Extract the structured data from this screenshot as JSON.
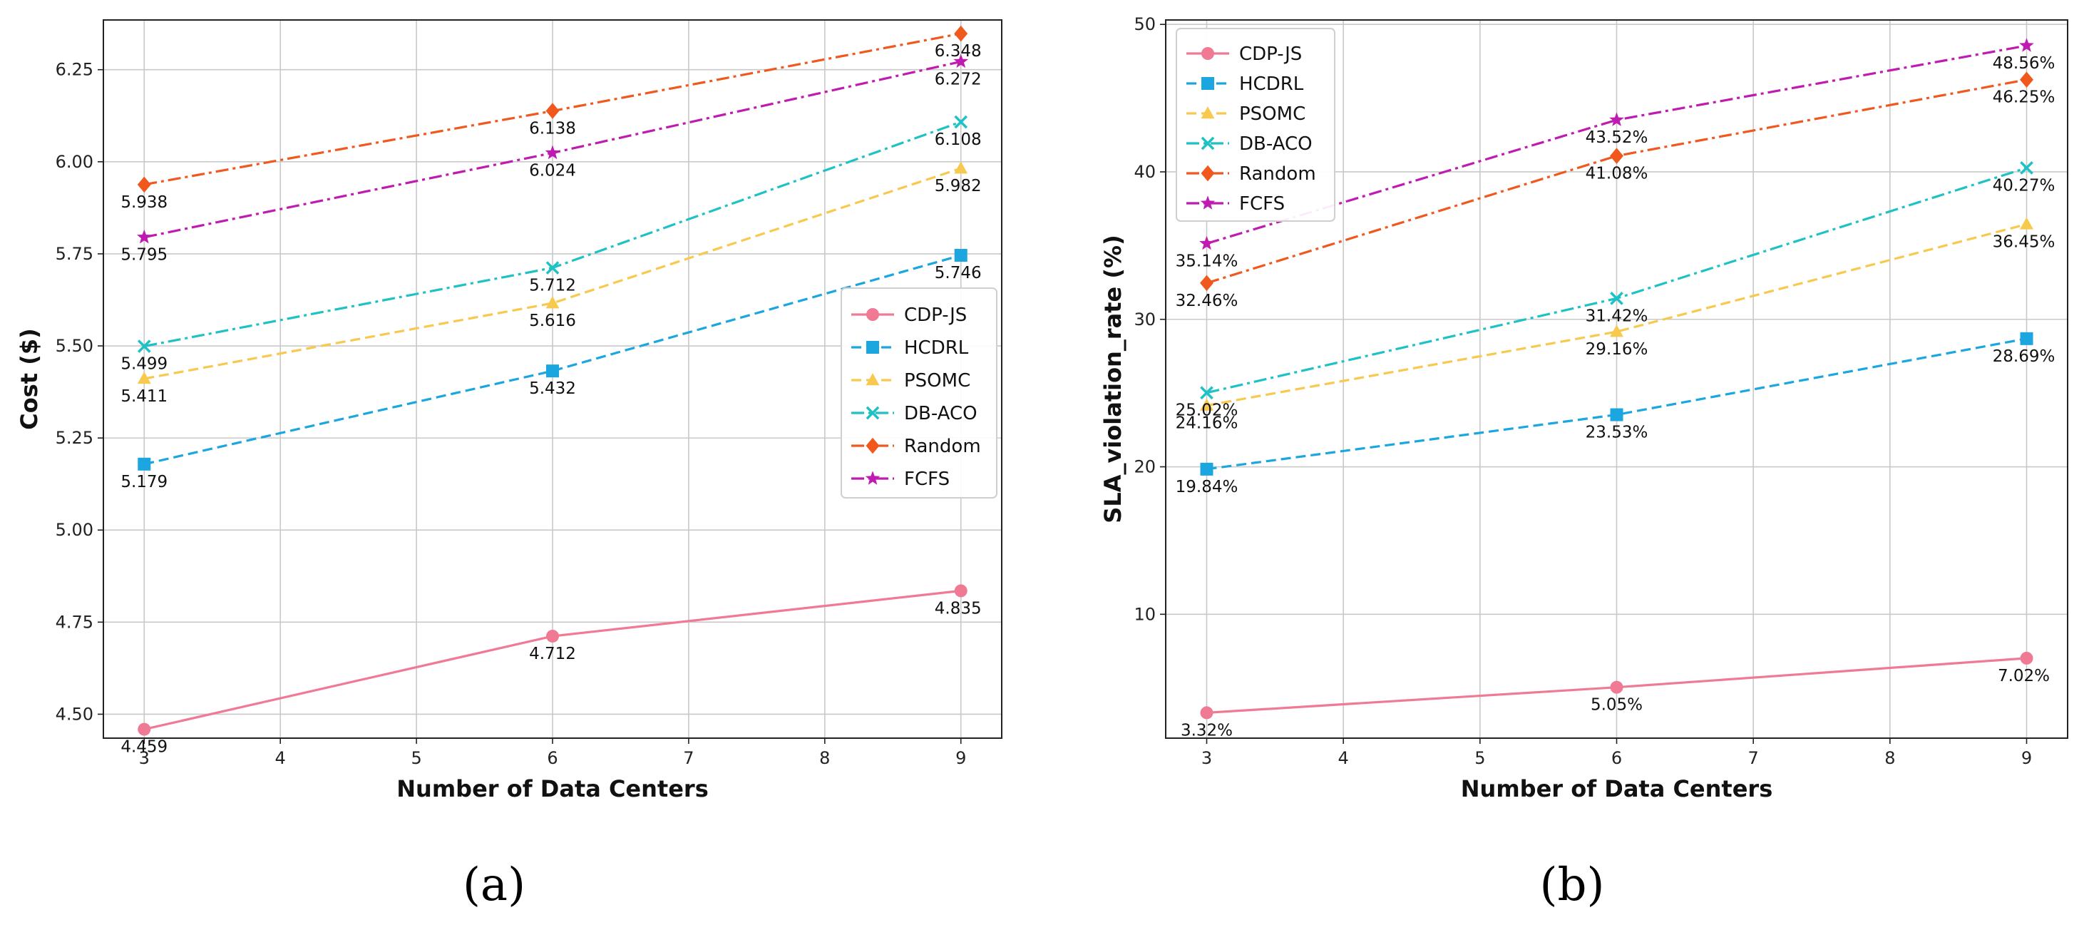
{
  "chart_data": [
    {
      "type": "line",
      "caption": "(a)",
      "xlabel": "Number of Data Centers",
      "ylabel": "Cost ($)",
      "xlim": [
        2.7,
        9.3
      ],
      "ylim": [
        4.435,
        6.385
      ],
      "xticks": [
        3,
        4,
        5,
        6,
        7,
        8,
        9
      ],
      "yticks": [
        4.5,
        4.75,
        5.0,
        5.25,
        5.5,
        5.75,
        6.0,
        6.25
      ],
      "ytick_labels": [
        "4.50",
        "4.75",
        "5.00",
        "5.25",
        "5.50",
        "5.75",
        "6.00",
        "6.25"
      ],
      "grid": true,
      "legend_position": "center-right",
      "x": [
        3,
        6,
        9
      ],
      "series": [
        {
          "name": "CDP-JS",
          "values": [
            4.459,
            4.712,
            4.835
          ],
          "labels": [
            "4.459",
            "4.712",
            "4.835"
          ],
          "color": "#f07a94",
          "marker": "circle",
          "dash": "solid"
        },
        {
          "name": "HCDRL",
          "values": [
            5.179,
            5.432,
            5.746
          ],
          "labels": [
            "5.179",
            "5.432",
            "5.746"
          ],
          "color": "#1ba6e0",
          "marker": "square",
          "dash": "dashed"
        },
        {
          "name": "PSOMC",
          "values": [
            5.411,
            5.616,
            5.982
          ],
          "labels": [
            "5.411",
            "5.616",
            "5.982"
          ],
          "color": "#f7c94f",
          "marker": "triangle",
          "dash": "dashed"
        },
        {
          "name": "DB-ACO",
          "values": [
            5.499,
            5.712,
            6.108
          ],
          "labels": [
            "5.499",
            "5.712",
            "6.108"
          ],
          "color": "#1ec2c4",
          "marker": "x",
          "dash": "dashdot"
        },
        {
          "name": "Random",
          "values": [
            5.938,
            6.138,
            6.348
          ],
          "labels": [
            "5.938",
            "6.138",
            "6.348"
          ],
          "color": "#f0581e",
          "marker": "diamond",
          "dash": "dashdot"
        },
        {
          "name": "FCFS",
          "values": [
            5.795,
            6.024,
            6.272
          ],
          "labels": [
            "5.795",
            "6.024",
            "6.272"
          ],
          "color": "#c01bb0",
          "marker": "star",
          "dash": "dashdot"
        }
      ]
    },
    {
      "type": "line",
      "caption": "(b)",
      "xlabel": "Number of Data Centers",
      "ylabel": "SLA_violation_rate (%)",
      "xlim": [
        2.7,
        9.3
      ],
      "ylim": [
        1.6,
        50.3
      ],
      "xticks": [
        3,
        4,
        5,
        6,
        7,
        8,
        9
      ],
      "yticks": [
        10,
        20,
        30,
        40,
        50
      ],
      "ytick_labels": [
        "10",
        "20",
        "30",
        "40",
        "50"
      ],
      "grid": true,
      "legend_position": "top-left",
      "x": [
        3,
        6,
        9
      ],
      "series": [
        {
          "name": "CDP-JS",
          "values": [
            3.32,
            5.05,
            7.02
          ],
          "labels": [
            "3.32%",
            "5.05%",
            "7.02%"
          ],
          "color": "#f07a94",
          "marker": "circle",
          "dash": "solid"
        },
        {
          "name": "HCDRL",
          "values": [
            19.84,
            23.53,
            28.69
          ],
          "labels": [
            "19.84%",
            "23.53%",
            "28.69%"
          ],
          "color": "#1ba6e0",
          "marker": "square",
          "dash": "dashed"
        },
        {
          "name": "PSOMC",
          "values": [
            24.16,
            29.16,
            36.45
          ],
          "labels": [
            "24.16%",
            "29.16%",
            "36.45%"
          ],
          "color": "#f7c94f",
          "marker": "triangle",
          "dash": "dashed"
        },
        {
          "name": "DB-ACO",
          "values": [
            25.02,
            31.42,
            40.27
          ],
          "labels": [
            "25.02%",
            "31.42%",
            "40.27%"
          ],
          "color": "#1ec2c4",
          "marker": "x",
          "dash": "dashdot"
        },
        {
          "name": "Random",
          "values": [
            32.46,
            41.08,
            46.25
          ],
          "labels": [
            "32.46%",
            "41.08%",
            "46.25%"
          ],
          "color": "#f0581e",
          "marker": "diamond",
          "dash": "dashdot"
        },
        {
          "name": "FCFS",
          "values": [
            35.14,
            43.52,
            48.56
          ],
          "labels": [
            "35.14%",
            "43.52%",
            "48.56%"
          ],
          "color": "#c01bb0",
          "marker": "star",
          "dash": "dashdot"
        }
      ]
    }
  ]
}
